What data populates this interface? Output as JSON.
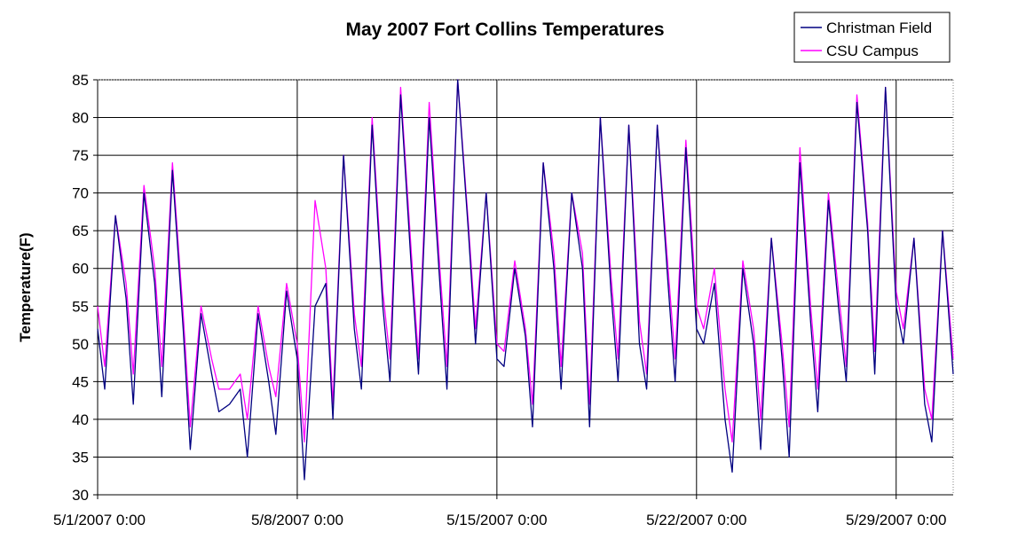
{
  "chart_data": {
    "type": "line",
    "title": "May 2007 Fort Collins Temperatures",
    "xlabel": "",
    "ylabel": "Temperature(F)",
    "ylim": [
      30,
      85
    ],
    "xlim": [
      "2007-05-01 00:00",
      "2007-05-31 00:00"
    ],
    "x_ticks": [
      "5/1/2007 0:00",
      "5/8/2007 0:00",
      "5/15/2007 0:00",
      "5/22/2007 0:00",
      "5/29/2007 0:00"
    ],
    "y_ticks": [
      "30",
      "35",
      "40",
      "45",
      "50",
      "55",
      "60",
      "65",
      "70",
      "75",
      "80",
      "85"
    ],
    "grid": {
      "horizontal": true,
      "vertical": true
    },
    "legend": "top-right",
    "x": [
      "2007-05-01 00:00",
      "2007-05-01 06:00",
      "2007-05-01 15:00",
      "2007-05-02 00:00",
      "2007-05-02 06:00",
      "2007-05-02 15:00",
      "2007-05-03 00:00",
      "2007-05-03 06:00",
      "2007-05-03 15:00",
      "2007-05-04 00:00",
      "2007-05-04 06:00",
      "2007-05-04 15:00",
      "2007-05-05 00:00",
      "2007-05-05 06:00",
      "2007-05-05 15:00",
      "2007-05-06 00:00",
      "2007-05-06 06:00",
      "2007-05-06 15:00",
      "2007-05-07 00:00",
      "2007-05-07 06:00",
      "2007-05-07 15:00",
      "2007-05-08 00:00",
      "2007-05-08 06:00",
      "2007-05-08 15:00",
      "2007-05-09 00:00",
      "2007-05-09 06:00",
      "2007-05-09 15:00",
      "2007-05-10 00:00",
      "2007-05-10 06:00",
      "2007-05-10 15:00",
      "2007-05-11 00:00",
      "2007-05-11 06:00",
      "2007-05-11 15:00",
      "2007-05-12 00:00",
      "2007-05-12 06:00",
      "2007-05-12 15:00",
      "2007-05-13 00:00",
      "2007-05-13 06:00",
      "2007-05-13 15:00",
      "2007-05-14 00:00",
      "2007-05-14 06:00",
      "2007-05-14 15:00",
      "2007-05-15 00:00",
      "2007-05-15 06:00",
      "2007-05-15 15:00",
      "2007-05-16 00:00",
      "2007-05-16 06:00",
      "2007-05-16 15:00",
      "2007-05-17 00:00",
      "2007-05-17 06:00",
      "2007-05-17 15:00",
      "2007-05-18 00:00",
      "2007-05-18 06:00",
      "2007-05-18 15:00",
      "2007-05-19 00:00",
      "2007-05-19 06:00",
      "2007-05-19 15:00",
      "2007-05-20 00:00",
      "2007-05-20 06:00",
      "2007-05-20 15:00",
      "2007-05-21 00:00",
      "2007-05-21 06:00",
      "2007-05-21 15:00",
      "2007-05-22 00:00",
      "2007-05-22 06:00",
      "2007-05-22 15:00",
      "2007-05-23 00:00",
      "2007-05-23 06:00",
      "2007-05-23 15:00",
      "2007-05-24 00:00",
      "2007-05-24 06:00",
      "2007-05-24 15:00",
      "2007-05-25 00:00",
      "2007-05-25 06:00",
      "2007-05-25 15:00",
      "2007-05-26 00:00",
      "2007-05-26 06:00",
      "2007-05-26 15:00",
      "2007-05-27 00:00",
      "2007-05-27 06:00",
      "2007-05-27 15:00",
      "2007-05-28 00:00",
      "2007-05-28 06:00",
      "2007-05-28 15:00",
      "2007-05-29 00:00",
      "2007-05-29 06:00",
      "2007-05-29 15:00",
      "2007-05-30 00:00",
      "2007-05-30 06:00",
      "2007-05-30 15:00",
      "2007-05-31 00:00"
    ],
    "series": [
      {
        "name": "Christman Field",
        "color": "#000080",
        "values": [
          52,
          44,
          67,
          56,
          42,
          70,
          58,
          43,
          73,
          52,
          36,
          54,
          46,
          41,
          42,
          44,
          35,
          54,
          45,
          38,
          57,
          48,
          32,
          55,
          58,
          40,
          75,
          52,
          44,
          79,
          55,
          45,
          83,
          60,
          46,
          80,
          58,
          44,
          85,
          65,
          50,
          70,
          48,
          47,
          60,
          51,
          39,
          74,
          60,
          44,
          70,
          60,
          39,
          80,
          57,
          45,
          79,
          50,
          44,
          79,
          58,
          45,
          76,
          52,
          50,
          58,
          40,
          33,
          60,
          50,
          36,
          64,
          48,
          35,
          74,
          53,
          41,
          69,
          54,
          45,
          82,
          65,
          46,
          84,
          55,
          50,
          64,
          42,
          37,
          65,
          46
        ]
      },
      {
        "name": "CSU Campus",
        "color": "#ff00ff",
        "values": [
          55,
          47,
          67,
          58,
          46,
          71,
          60,
          47,
          74,
          54,
          39,
          55,
          48,
          44,
          44,
          46,
          40,
          55,
          47,
          43,
          58,
          50,
          37,
          69,
          60,
          42,
          75,
          54,
          47,
          80,
          57,
          48,
          84,
          62,
          48,
          82,
          60,
          47,
          85,
          66,
          52,
          70,
          50,
          49,
          61,
          52,
          42,
          74,
          62,
          47,
          70,
          62,
          42,
          80,
          59,
          48,
          79,
          53,
          46,
          79,
          60,
          48,
          77,
          55,
          52,
          60,
          44,
          37,
          61,
          52,
          40,
          64,
          50,
          39,
          76,
          55,
          44,
          70,
          56,
          47,
          83,
          66,
          49,
          84,
          57,
          52,
          64,
          44,
          40,
          65,
          48
        ]
      }
    ]
  }
}
